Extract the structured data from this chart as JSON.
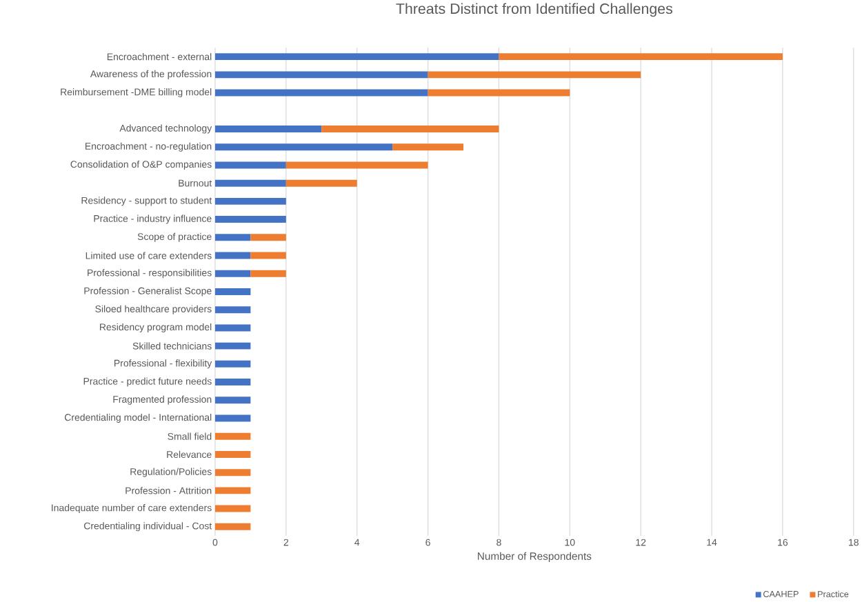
{
  "chart_data": {
    "type": "bar",
    "orientation": "horizontal",
    "stacked": true,
    "title": "Threats Distinct from Identified Challenges",
    "xlabel": "Number of Respondents",
    "categories": [
      "Encroachment - external",
      "Awareness of the profession",
      "Reimbursement -DME billing model",
      null,
      "Advanced technology",
      "Encroachment - no-regulation",
      "Consolidation of O&P companies",
      "Burnout",
      "Residency - support to student",
      "Practice - industry influence",
      "Scope of practice",
      "Limited use of care extenders",
      "Professional - responsibilities",
      "Profession - Generalist Scope",
      "Siloed healthcare providers",
      "Residency program model",
      "Skilled technicians",
      "Professional - flexibility",
      "Practice - predict future needs",
      "Fragmented profession",
      "Credentialing model - International",
      "Small field",
      "Relevance",
      "Regulation/Policies",
      "Profession - Attrition",
      "Inadequate number of care extenders",
      "Credentialing individual - Cost"
    ],
    "series": [
      {
        "name": "CAAHEP",
        "color": "#4472c4",
        "values": [
          8,
          6,
          6,
          null,
          3,
          5,
          2,
          2,
          2,
          2,
          1,
          1,
          1,
          1,
          1,
          1,
          1,
          1,
          1,
          1,
          1,
          null,
          null,
          null,
          null,
          null,
          null
        ]
      },
      {
        "name": "Practice",
        "color": "#ed7d31",
        "values": [
          8,
          6,
          4,
          null,
          5,
          2,
          4,
          2,
          null,
          null,
          1,
          1,
          1,
          null,
          null,
          null,
          null,
          null,
          null,
          null,
          null,
          1,
          1,
          1,
          1,
          1,
          1
        ]
      }
    ],
    "xlim": [
      0,
      18
    ],
    "xticks": [
      0,
      2,
      4,
      6,
      8,
      10,
      12,
      14,
      16,
      18
    ],
    "grid": "x",
    "legend": "bottom right"
  }
}
